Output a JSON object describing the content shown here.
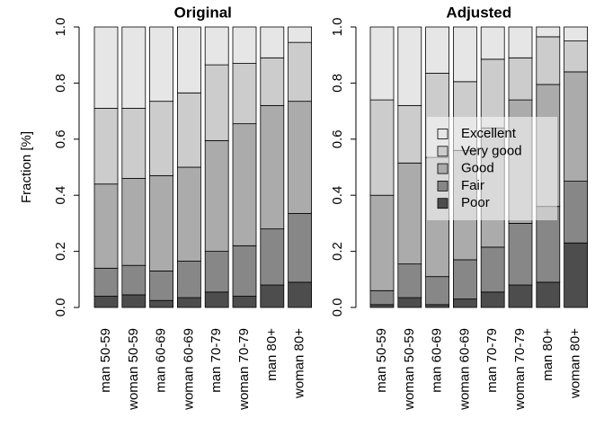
{
  "chart_data": [
    {
      "type": "bar",
      "stacked": true,
      "title": "Original",
      "y_label": "Fraction [%]",
      "categories": [
        "man 50-59",
        "woman 50-59",
        "man 60-69",
        "woman 60-69",
        "man 70-79",
        "woman 70-79",
        "man 80+",
        "woman 80+"
      ],
      "ylim": [
        0,
        1
      ],
      "yticks": [
        {
          "value": 0,
          "label": "0.0"
        },
        0.2,
        0.4,
        0.6,
        0.8,
        {
          "value": 1,
          "label": "1.0"
        }
      ],
      "series": [
        {
          "color": "#4d4d4d",
          "values": [
            0.04,
            0.045,
            0.025,
            0.035,
            0.055,
            0.04,
            0.08,
            0.09
          ]
        },
        {
          "color": "#878787",
          "values": [
            0.1,
            0.105,
            0.105,
            0.13,
            0.145,
            0.18,
            0.2,
            0.245
          ]
        },
        {
          "color": "#ababab",
          "values": [
            0.3,
            0.31,
            0.34,
            0.335,
            0.395,
            0.435,
            0.44,
            0.4
          ]
        },
        {
          "color": "#cccccc",
          "values": [
            0.27,
            0.25,
            0.265,
            0.265,
            0.27,
            0.215,
            0.17,
            0.21
          ]
        },
        {
          "color": "#e6e6e6",
          "values": [
            0.29,
            0.29,
            0.265,
            0.235,
            0.135,
            0.13,
            0.11,
            0.055
          ]
        }
      ]
    },
    {
      "type": "bar",
      "stacked": true,
      "title": "Adjusted",
      "legend": "center-right",
      "categories": [
        "man 50-59",
        "woman 50-59",
        "man 60-69",
        "woman 60-69",
        "man 70-79",
        "woman 70-79",
        "man 80+",
        "woman 80+"
      ],
      "ylim": [
        0,
        1
      ],
      "yticks": [
        {
          "value": 0,
          "label": "0.0"
        },
        0.2,
        0.4,
        0.6,
        0.8,
        {
          "value": 1,
          "label": "1.0"
        }
      ],
      "series": [
        {
          "name": "Poor",
          "color": "#4d4d4d",
          "values": [
            0.01,
            0.035,
            0.01,
            0.03,
            0.055,
            0.08,
            0.09,
            0.23
          ]
        },
        {
          "name": "Fair",
          "color": "#878787",
          "values": [
            0.05,
            0.12,
            0.1,
            0.14,
            0.16,
            0.22,
            0.27,
            0.22
          ]
        },
        {
          "name": "Good",
          "color": "#ababab",
          "values": [
            0.34,
            0.36,
            0.425,
            0.39,
            0.425,
            0.44,
            0.435,
            0.39
          ]
        },
        {
          "name": "Very good",
          "color": "#cccccc",
          "values": [
            0.34,
            0.205,
            0.3,
            0.245,
            0.245,
            0.15,
            0.17,
            0.11
          ]
        },
        {
          "name": "Excellent",
          "color": "#e6e6e6",
          "values": [
            0.26,
            0.28,
            0.165,
            0.195,
            0.115,
            0.11,
            0.035,
            0.05
          ]
        }
      ]
    }
  ]
}
